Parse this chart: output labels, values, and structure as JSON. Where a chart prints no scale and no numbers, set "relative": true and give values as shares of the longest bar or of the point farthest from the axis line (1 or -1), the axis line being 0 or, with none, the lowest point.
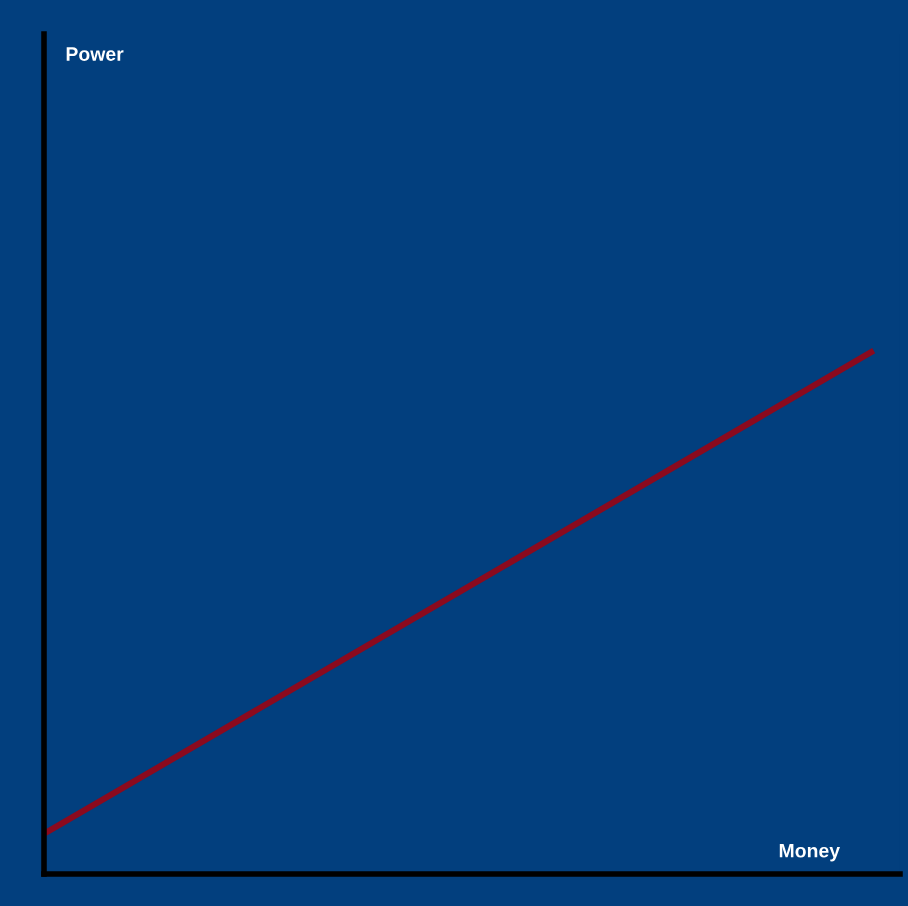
{
  "chart_data": {
    "type": "line",
    "relative": true,
    "annotations": [
      "Power",
      "Money"
    ],
    "categories": [
      null,
      null
    ],
    "series": [
      {
        "color": "#8b0a1e",
        "values": [
          0.077,
          1
        ]
      }
    ],
    "grid": false,
    "legend": false,
    "marker": "none",
    "line_style": "solid"
  }
}
